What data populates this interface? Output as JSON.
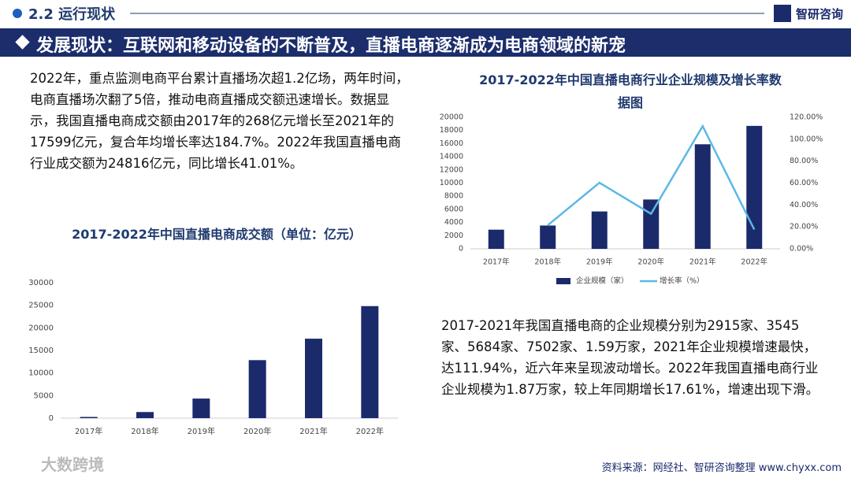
{
  "header": {
    "section": "2.2 运行现状",
    "brand": "智研咨询",
    "banner": "发展现状：互联网和移动设备的不断普及，直播电商逐渐成为电商领域的新宠"
  },
  "paragraphs": [
    "2022年，重点监测电商平台累计直播场次超1.2亿场，两年时间，电商直播场次翻了5倍，推动电商直播成交额迅速增长。数据显示，我国直播电商成交额由2017年的268亿元增长至2021年的17599亿元，复合年均增长率达184.7%。2022年我国直播电商行业成交额为24816亿元，同比增长41.01%。",
    "2017-2021年我国直播电商的企业规模分别为2915家、3545家、5684家、7502家、1.59万家，2021年企业规模增速最快，达111.94%，近六年来呈现波动增长。2022年我国直播电商行业企业规模为1.87万家，较上年同期增长17.61%，增速出现下滑。"
  ],
  "source": "资料来源：网经社、智研咨询整理 www.chyxx.com",
  "watermark": "大数跨境",
  "chart_data": [
    {
      "type": "bar",
      "title": "2017-2022年中国直播电商成交额（单位：亿元）",
      "categories": [
        "2017年",
        "2018年",
        "2019年",
        "2020年",
        "2021年",
        "2022年"
      ],
      "values": [
        268,
        1354,
        4338,
        12850,
        17599,
        24816
      ],
      "color": "#1b2a6b",
      "ylim": [
        0,
        30000
      ],
      "yticks": [
        0,
        5000,
        10000,
        15000,
        20000,
        25000,
        30000
      ]
    },
    {
      "type": "bar-line",
      "title": "2017-2022年中国直播电商行业企业规模及增长率数据图",
      "categories": [
        "2017年",
        "2018年",
        "2019年",
        "2020年",
        "2021年",
        "2022年"
      ],
      "series": [
        {
          "name": "企业规模（家）",
          "type": "bar",
          "color": "#1b2a6b",
          "values": [
            2915,
            3545,
            5684,
            7502,
            15900,
            18700
          ]
        },
        {
          "name": "增长率（%）",
          "type": "line",
          "axis": "y2",
          "color": "#5bb8e6",
          "values": [
            null,
            21.61,
            60.34,
            31.98,
            111.94,
            17.61
          ]
        }
      ],
      "ylim": [
        0,
        20000
      ],
      "yticks": [
        0,
        2000,
        4000,
        6000,
        8000,
        10000,
        12000,
        14000,
        16000,
        18000,
        20000
      ],
      "y2lim": [
        0,
        120
      ],
      "y2ticks": [
        {
          "value": 0,
          "label": "0.00%"
        },
        {
          "value": 20,
          "label": "20.00%"
        },
        {
          "value": 40,
          "label": "40.00%"
        },
        {
          "value": 60,
          "label": "60.00%"
        },
        {
          "value": 80,
          "label": "80.00%"
        },
        {
          "value": 100,
          "label": "100.00%"
        },
        {
          "value": 120,
          "label": "120.00%"
        }
      ],
      "legend": "bottom"
    }
  ]
}
